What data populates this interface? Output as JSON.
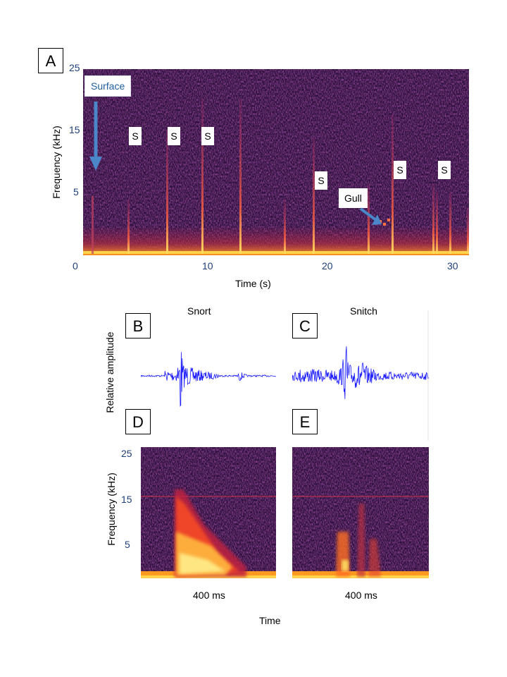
{
  "panels": {
    "a": "A",
    "b": "B",
    "c": "C",
    "d": "D",
    "e": "E"
  },
  "spectrogram_main": {
    "y_ticks": [
      "25",
      "15",
      "5"
    ],
    "x_ticks": [
      "0",
      "10",
      "20",
      "30"
    ],
    "ylabel": "Frequency (kHz)",
    "xlabel": "Time (s)",
    "surface_label": "Surface",
    "gull_label": "Gull",
    "s_markers": [
      "S",
      "S",
      "S",
      "S",
      "S",
      "S"
    ],
    "colors": {
      "bg": "#2a0f3a",
      "noise": "#5a1a66",
      "hot": "#ffd24a",
      "arrow": "#4a86c8"
    }
  },
  "waveforms": {
    "left_title": "Snort",
    "right_title": "Snitch",
    "ylabel": "Relative amplitude",
    "color": "#1a1aff"
  },
  "spectrogram_small": {
    "y_ticks": [
      "25",
      "15",
      "5"
    ],
    "ylabel": "Frequency (kHz)",
    "duration_left": "400 ms",
    "duration_right": "400 ms",
    "xlabel": "Time"
  }
}
